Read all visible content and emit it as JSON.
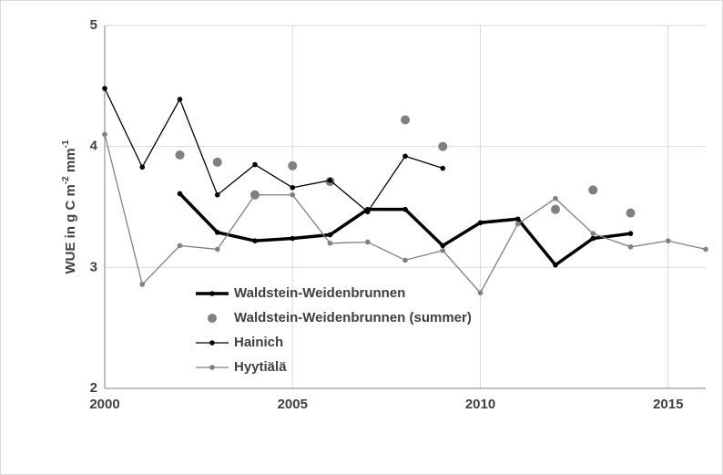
{
  "chart_data": {
    "type": "line",
    "y_label_parts": [
      "WUE in g C m",
      "-2",
      " mm",
      "-1"
    ],
    "x": [
      2000,
      2001,
      2002,
      2003,
      2004,
      2005,
      2006,
      2007,
      2008,
      2009,
      2010,
      2011,
      2012,
      2013,
      2014,
      2015,
      2016
    ],
    "xlim": [
      2000,
      2016
    ],
    "xticks": [
      2000,
      2005,
      2010,
      2015
    ],
    "ylim": [
      2,
      5
    ],
    "yticks": [
      2,
      3,
      4,
      5
    ],
    "grid": true,
    "legend": "center",
    "series": [
      {
        "name": "Waldstein-Weidenbrunnen",
        "color": "#000000",
        "line": true,
        "line_width": 3.5,
        "values": [
          null,
          null,
          3.61,
          3.29,
          3.22,
          3.24,
          3.27,
          3.48,
          3.48,
          3.18,
          3.37,
          3.4,
          3.02,
          3.24,
          3.28,
          null,
          null
        ]
      },
      {
        "name": "Waldstein-Weidenbrunnen (summer)",
        "color": "#808080",
        "line": false,
        "line_width": 0,
        "values": [
          null,
          null,
          3.93,
          3.87,
          3.6,
          3.84,
          3.71,
          null,
          4.22,
          4.0,
          null,
          null,
          3.48,
          3.64,
          3.45,
          null,
          null
        ]
      },
      {
        "name": "Hainich",
        "color": "#000000",
        "line": true,
        "line_width": 1.3,
        "values": [
          4.48,
          3.83,
          4.39,
          3.6,
          3.85,
          3.66,
          3.72,
          3.46,
          3.92,
          3.82,
          null,
          null,
          null,
          null,
          null,
          null,
          null
        ]
      },
      {
        "name": "Hyytiälä",
        "color": "#808080",
        "line": true,
        "line_width": 1.3,
        "values": [
          4.1,
          2.86,
          3.18,
          3.15,
          3.6,
          3.6,
          3.2,
          3.21,
          3.06,
          3.14,
          2.79,
          3.36,
          3.57,
          3.28,
          3.17,
          3.22,
          3.15
        ]
      }
    ]
  }
}
